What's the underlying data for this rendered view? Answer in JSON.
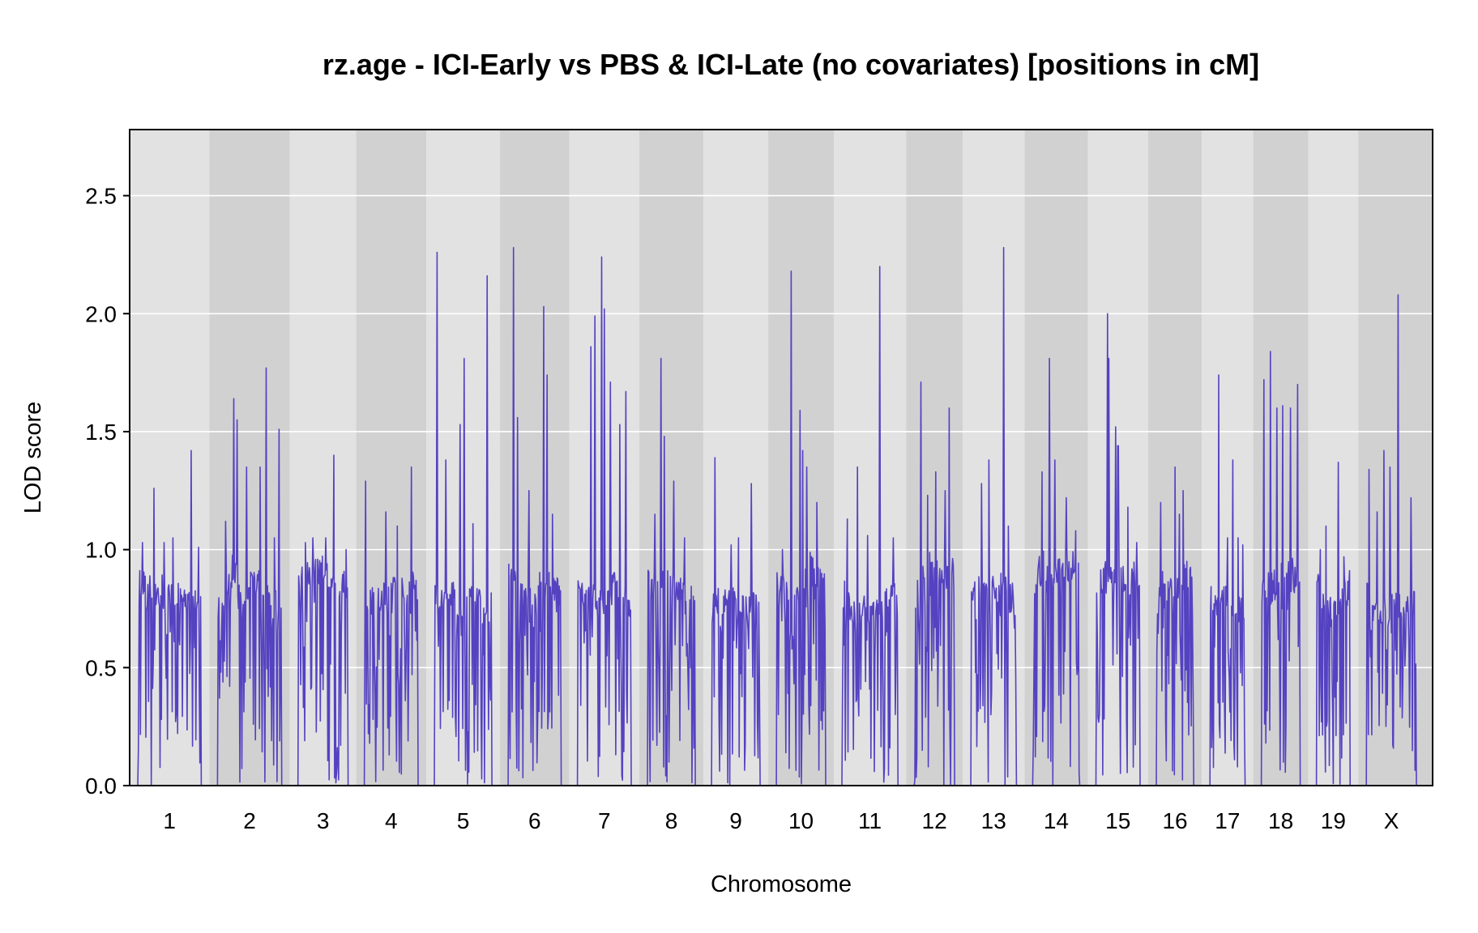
{
  "colors": {
    "series": "#5442c1",
    "band_light": "#e2e2e2",
    "band_dark": "#d1d1d1",
    "gridline": "#ffffff",
    "frame": "#000000"
  },
  "chart_data": {
    "type": "line",
    "title": "rz.age - ICI-Early vs PBS & ICI-Late (no covariates) [positions in cM]",
    "xlabel": "Chromosome",
    "ylabel": "LOD score",
    "ylim": [
      0,
      2.78
    ],
    "yticks": [
      0.0,
      0.5,
      1.0,
      1.5,
      2.0,
      2.5
    ],
    "ytick_labels": [
      "0.0",
      "0.5",
      "1.0",
      "1.5",
      "2.0",
      "2.5"
    ],
    "grid": "horizontal",
    "legend": "none",
    "series": [
      {
        "chromosomes": [
          {
            "label": "1",
            "length": 96,
            "peaks": [
              [
                0.07,
                1.03
              ],
              [
                0.25,
                1.26
              ],
              [
                0.42,
                1.03
              ],
              [
                0.55,
                1.05
              ],
              [
                0.84,
                1.42
              ],
              [
                0.96,
                1.01
              ]
            ]
          },
          {
            "label": "2",
            "length": 97,
            "peaks": [
              [
                0.13,
                1.12
              ],
              [
                0.25,
                1.64
              ],
              [
                0.31,
                1.55
              ],
              [
                0.45,
                1.35
              ],
              [
                0.66,
                1.35
              ],
              [
                0.76,
                1.77
              ],
              [
                0.88,
                1.05
              ],
              [
                0.96,
                1.51
              ]
            ]
          },
          {
            "label": "3",
            "length": 78,
            "peaks": [
              [
                0.15,
                1.03
              ],
              [
                0.3,
                1.05
              ],
              [
                0.56,
                1.05
              ],
              [
                0.71,
                1.4
              ],
              [
                0.96,
                1.0
              ]
            ]
          },
          {
            "label": "4",
            "length": 83,
            "peaks": [
              [
                0.03,
                1.29
              ],
              [
                0.4,
                1.16
              ],
              [
                0.61,
                1.1
              ],
              [
                0.87,
                1.35
              ],
              [
                0.96,
                0.87
              ]
            ]
          },
          {
            "label": "5",
            "length": 88,
            "peaks": [
              [
                0.05,
                2.26
              ],
              [
                0.2,
                1.38
              ],
              [
                0.45,
                1.53
              ],
              [
                0.52,
                1.81
              ],
              [
                0.67,
                1.11
              ],
              [
                0.92,
                2.16
              ]
            ]
          },
          {
            "label": "6",
            "length": 82,
            "peaks": [
              [
                0.1,
                2.28
              ],
              [
                0.18,
                1.56
              ],
              [
                0.39,
                1.25
              ],
              [
                0.67,
                2.03
              ],
              [
                0.73,
                1.74
              ],
              [
                0.83,
                1.15
              ]
            ]
          },
          {
            "label": "7",
            "length": 83,
            "peaks": [
              [
                0.25,
                1.86
              ],
              [
                0.33,
                1.99
              ],
              [
                0.45,
                2.24
              ],
              [
                0.5,
                2.02
              ],
              [
                0.61,
                1.71
              ],
              [
                0.79,
                1.53
              ],
              [
                0.9,
                1.67
              ]
            ]
          },
          {
            "label": "8",
            "length": 75,
            "peaks": [
              [
                0.15,
                1.15
              ],
              [
                0.28,
                1.81
              ],
              [
                0.35,
                1.48
              ],
              [
                0.55,
                1.29
              ],
              [
                0.78,
                1.05
              ]
            ]
          },
          {
            "label": "9",
            "length": 76,
            "peaks": [
              [
                0.07,
                1.39
              ],
              [
                0.4,
                1.02
              ],
              [
                0.55,
                1.05
              ],
              [
                0.82,
                1.28
              ]
            ]
          },
          {
            "label": "10",
            "length": 77,
            "peaks": [
              [
                0.12,
                1.0
              ],
              [
                0.3,
                2.18
              ],
              [
                0.48,
                1.59
              ],
              [
                0.53,
                1.42
              ],
              [
                0.62,
                1.35
              ],
              [
                0.82,
                1.2
              ]
            ]
          },
          {
            "label": "11",
            "length": 86,
            "peaks": [
              [
                0.1,
                1.13
              ],
              [
                0.28,
                1.35
              ],
              [
                0.46,
                1.06
              ],
              [
                0.68,
                2.2
              ],
              [
                0.91,
                1.05
              ]
            ]
          },
          {
            "label": "12",
            "length": 65,
            "peaks": [
              [
                0.16,
                1.71
              ],
              [
                0.34,
                1.23
              ],
              [
                0.53,
                1.33
              ],
              [
                0.76,
                1.25
              ],
              [
                0.87,
                1.6
              ]
            ]
          },
          {
            "label": "13",
            "length": 72,
            "peaks": [
              [
                0.23,
                1.28
              ],
              [
                0.4,
                1.38
              ],
              [
                0.72,
                2.28
              ],
              [
                0.82,
                1.1
              ]
            ]
          },
          {
            "label": "14",
            "length": 74,
            "peaks": [
              [
                0.2,
                1.33
              ],
              [
                0.36,
                1.81
              ],
              [
                0.47,
                1.38
              ],
              [
                0.71,
                1.22
              ],
              [
                0.91,
                1.08
              ]
            ]
          },
          {
            "label": "15",
            "length": 70,
            "peaks": [
              [
                0.26,
                2.0
              ],
              [
                0.29,
                1.81
              ],
              [
                0.45,
                1.52
              ],
              [
                0.5,
                1.44
              ],
              [
                0.72,
                1.18
              ],
              [
                0.92,
                1.03
              ]
            ]
          },
          {
            "label": "16",
            "length": 61,
            "peaks": [
              [
                0.12,
                1.2
              ],
              [
                0.5,
                1.35
              ],
              [
                0.62,
                1.15
              ],
              [
                0.72,
                1.25
              ]
            ]
          },
          {
            "label": "17",
            "length": 58,
            "peaks": [
              [
                0.25,
                1.74
              ],
              [
                0.5,
                1.05
              ],
              [
                0.65,
                1.38
              ],
              [
                0.8,
                1.05
              ],
              [
                0.93,
                1.02
              ]
            ]
          },
          {
            "label": "18",
            "length": 63,
            "peaks": [
              [
                0.07,
                1.72
              ],
              [
                0.24,
                1.84
              ],
              [
                0.4,
                1.6
              ],
              [
                0.55,
                1.61
              ],
              [
                0.75,
                1.6
              ],
              [
                0.93,
                1.7
              ]
            ]
          },
          {
            "label": "19",
            "length": 56,
            "peaks": [
              [
                0.12,
                1.0
              ],
              [
                0.29,
                1.1
              ],
              [
                0.65,
                1.37
              ],
              [
                0.82,
                0.97
              ]
            ]
          },
          {
            "label": "X",
            "length": 78,
            "peaks": [
              [
                0.05,
                1.34
              ],
              [
                0.22,
                1.16
              ],
              [
                0.35,
                1.42
              ],
              [
                0.47,
                1.35
              ],
              [
                0.63,
                2.08
              ],
              [
                0.89,
                1.22
              ]
            ]
          }
        ]
      }
    ]
  }
}
